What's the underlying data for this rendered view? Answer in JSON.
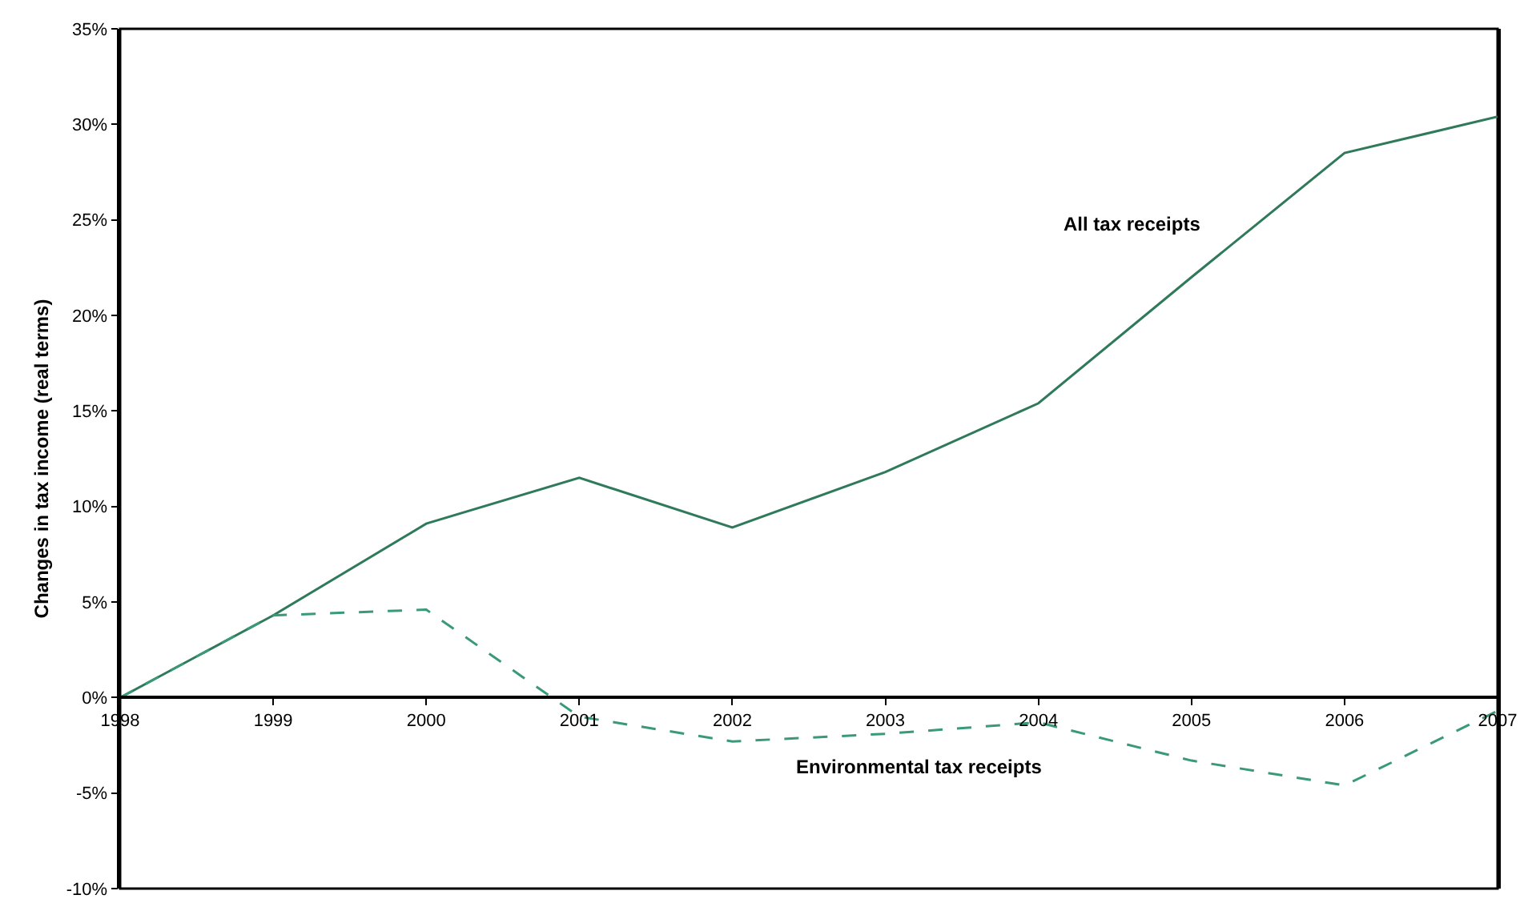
{
  "chart_data": {
    "type": "line",
    "ylabel": "Changes in tax income (real terms)",
    "x": [
      1998,
      1999,
      2000,
      2001,
      2002,
      2003,
      2004,
      2005,
      2006,
      2007
    ],
    "xlim": [
      1998,
      2007
    ],
    "xticks": [
      1998,
      1999,
      2000,
      2001,
      2002,
      2003,
      2004,
      2005,
      2006,
      2007
    ],
    "ylim": [
      -10,
      35
    ],
    "yticks": [
      {
        "value": -10,
        "label": "-10%"
      },
      {
        "value": -5,
        "label": "-5%"
      },
      {
        "value": 0,
        "label": "0%"
      },
      {
        "value": 5,
        "label": "5%"
      },
      {
        "value": 10,
        "label": "10%"
      },
      {
        "value": 15,
        "label": "15%"
      },
      {
        "value": 20,
        "label": "20%"
      },
      {
        "value": 25,
        "label": "25%"
      },
      {
        "value": 30,
        "label": "30%"
      },
      {
        "value": 35,
        "label": "35%"
      }
    ],
    "grid": false,
    "legend": false,
    "marker": "none",
    "series": [
      {
        "name": "All tax receipts",
        "color": "#2f7a5a",
        "line_style": "solid",
        "values": [
          0,
          4.3,
          9.1,
          11.5,
          8.9,
          11.8,
          15.4,
          22.0,
          28.5,
          30.4
        ]
      },
      {
        "name": "Environmental tax receipts",
        "color": "#3a9a78",
        "line_style": "dashed",
        "values": [
          0,
          4.3,
          4.6,
          -1.0,
          -2.3,
          -1.9,
          -1.3,
          -3.3,
          -4.6,
          -0.7
        ]
      }
    ]
  }
}
